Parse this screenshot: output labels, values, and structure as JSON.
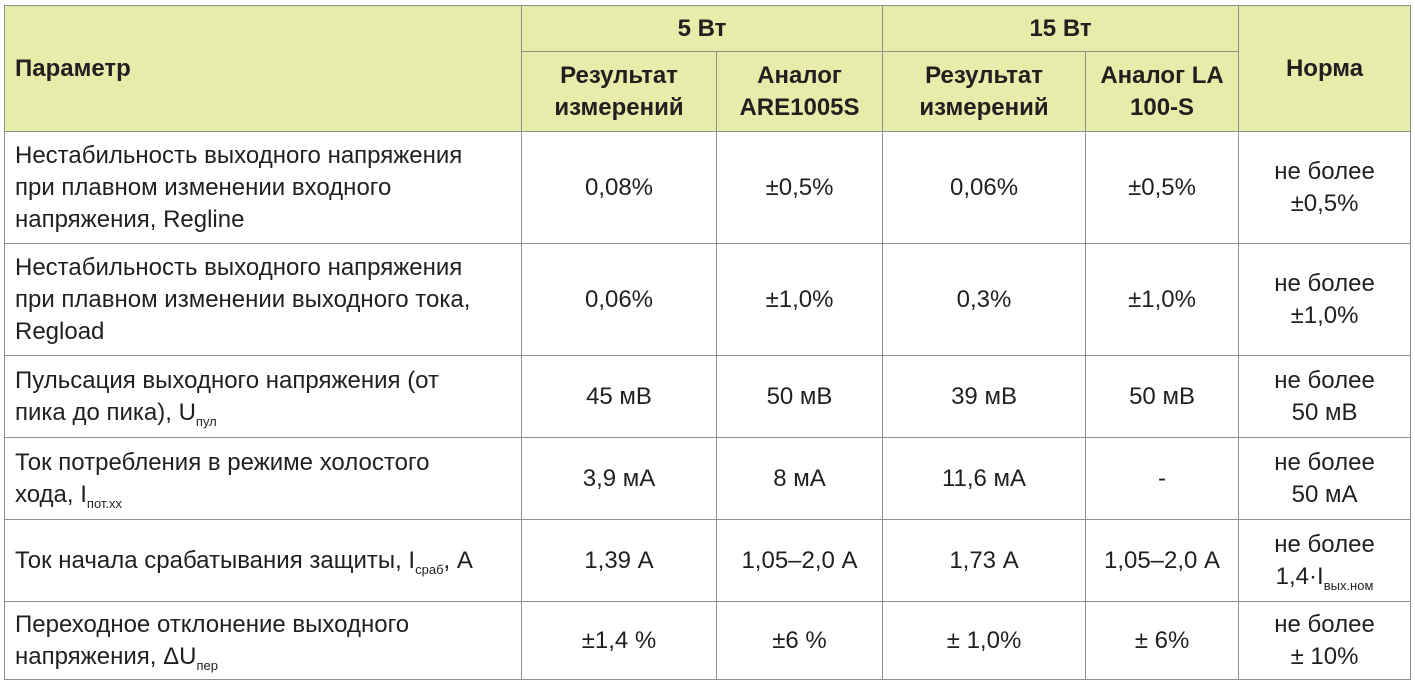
{
  "header": {
    "param": "Параметр",
    "group_5w": "5 Вт",
    "group_15w": "15 Вт",
    "result_5w": [
      "Результат",
      "измерений"
    ],
    "analog_5w": [
      "Аналог",
      "ARE1005S"
    ],
    "result_15w": [
      "Результат",
      "измерений"
    ],
    "analog_15w": [
      "Аналог LA",
      "100-S"
    ],
    "norm": "Норма"
  },
  "rows": [
    {
      "param_lines": [
        "Нестабильность выходного напряжения",
        "при плавном изменении входного",
        "напряжения, Regline"
      ],
      "r5": "0,08%",
      "a5": "±0,5%",
      "r15": "0,06%",
      "a15": "±0,5%",
      "norm_lines": [
        "не более",
        "±0,5%"
      ]
    },
    {
      "param_lines": [
        "Нестабильность выходного напряжения",
        "при плавном изменении выходного тока,",
        "Regload"
      ],
      "r5": "0,06%",
      "a5": "±1,0%",
      "r15": "0,3%",
      "a15": "±1,0%",
      "norm_lines": [
        "не более",
        "±1,0%"
      ]
    },
    {
      "param_line1": "Пульсация выходного напряжения (от",
      "param_line2": "пика до пика), U",
      "param_sub": "пул",
      "r5": "45 мВ",
      "a5": "50 мВ",
      "r15": "39 мВ",
      "a15": "50 мВ",
      "norm_lines": [
        "не более",
        "50 мВ"
      ]
    },
    {
      "param_line1": "Ток потребления в режиме холостого",
      "param_line2": "хода, I",
      "param_sub": "пот.хх",
      "r5": "3,9 мА",
      "a5": "8 мА",
      "r15": "11,6 мА",
      "a15": "-",
      "norm_lines": [
        "не более",
        "50 мА"
      ]
    },
    {
      "param_pre": "Ток начала срабатывания защиты, I",
      "param_sub": "сраб",
      "param_post": ", А",
      "r5": "1,39 А",
      "a5": "1,05–2,0 А",
      "r15": "1,73 А",
      "a15": "1,05–2,0 А",
      "norm_line1": "не более",
      "norm_line2": "1,4·I",
      "norm_sub": "вых.ном"
    },
    {
      "param_line1": "Переходное отклонение выходного",
      "param_line2": "напряжения, ΔU",
      "param_sub": "пер",
      "r5": "±1,4 %",
      "a5": "±6 %",
      "r15": "± 1,0%",
      "a15": "± 6%",
      "norm_lines": [
        "не более",
        "± 10%"
      ]
    }
  ]
}
